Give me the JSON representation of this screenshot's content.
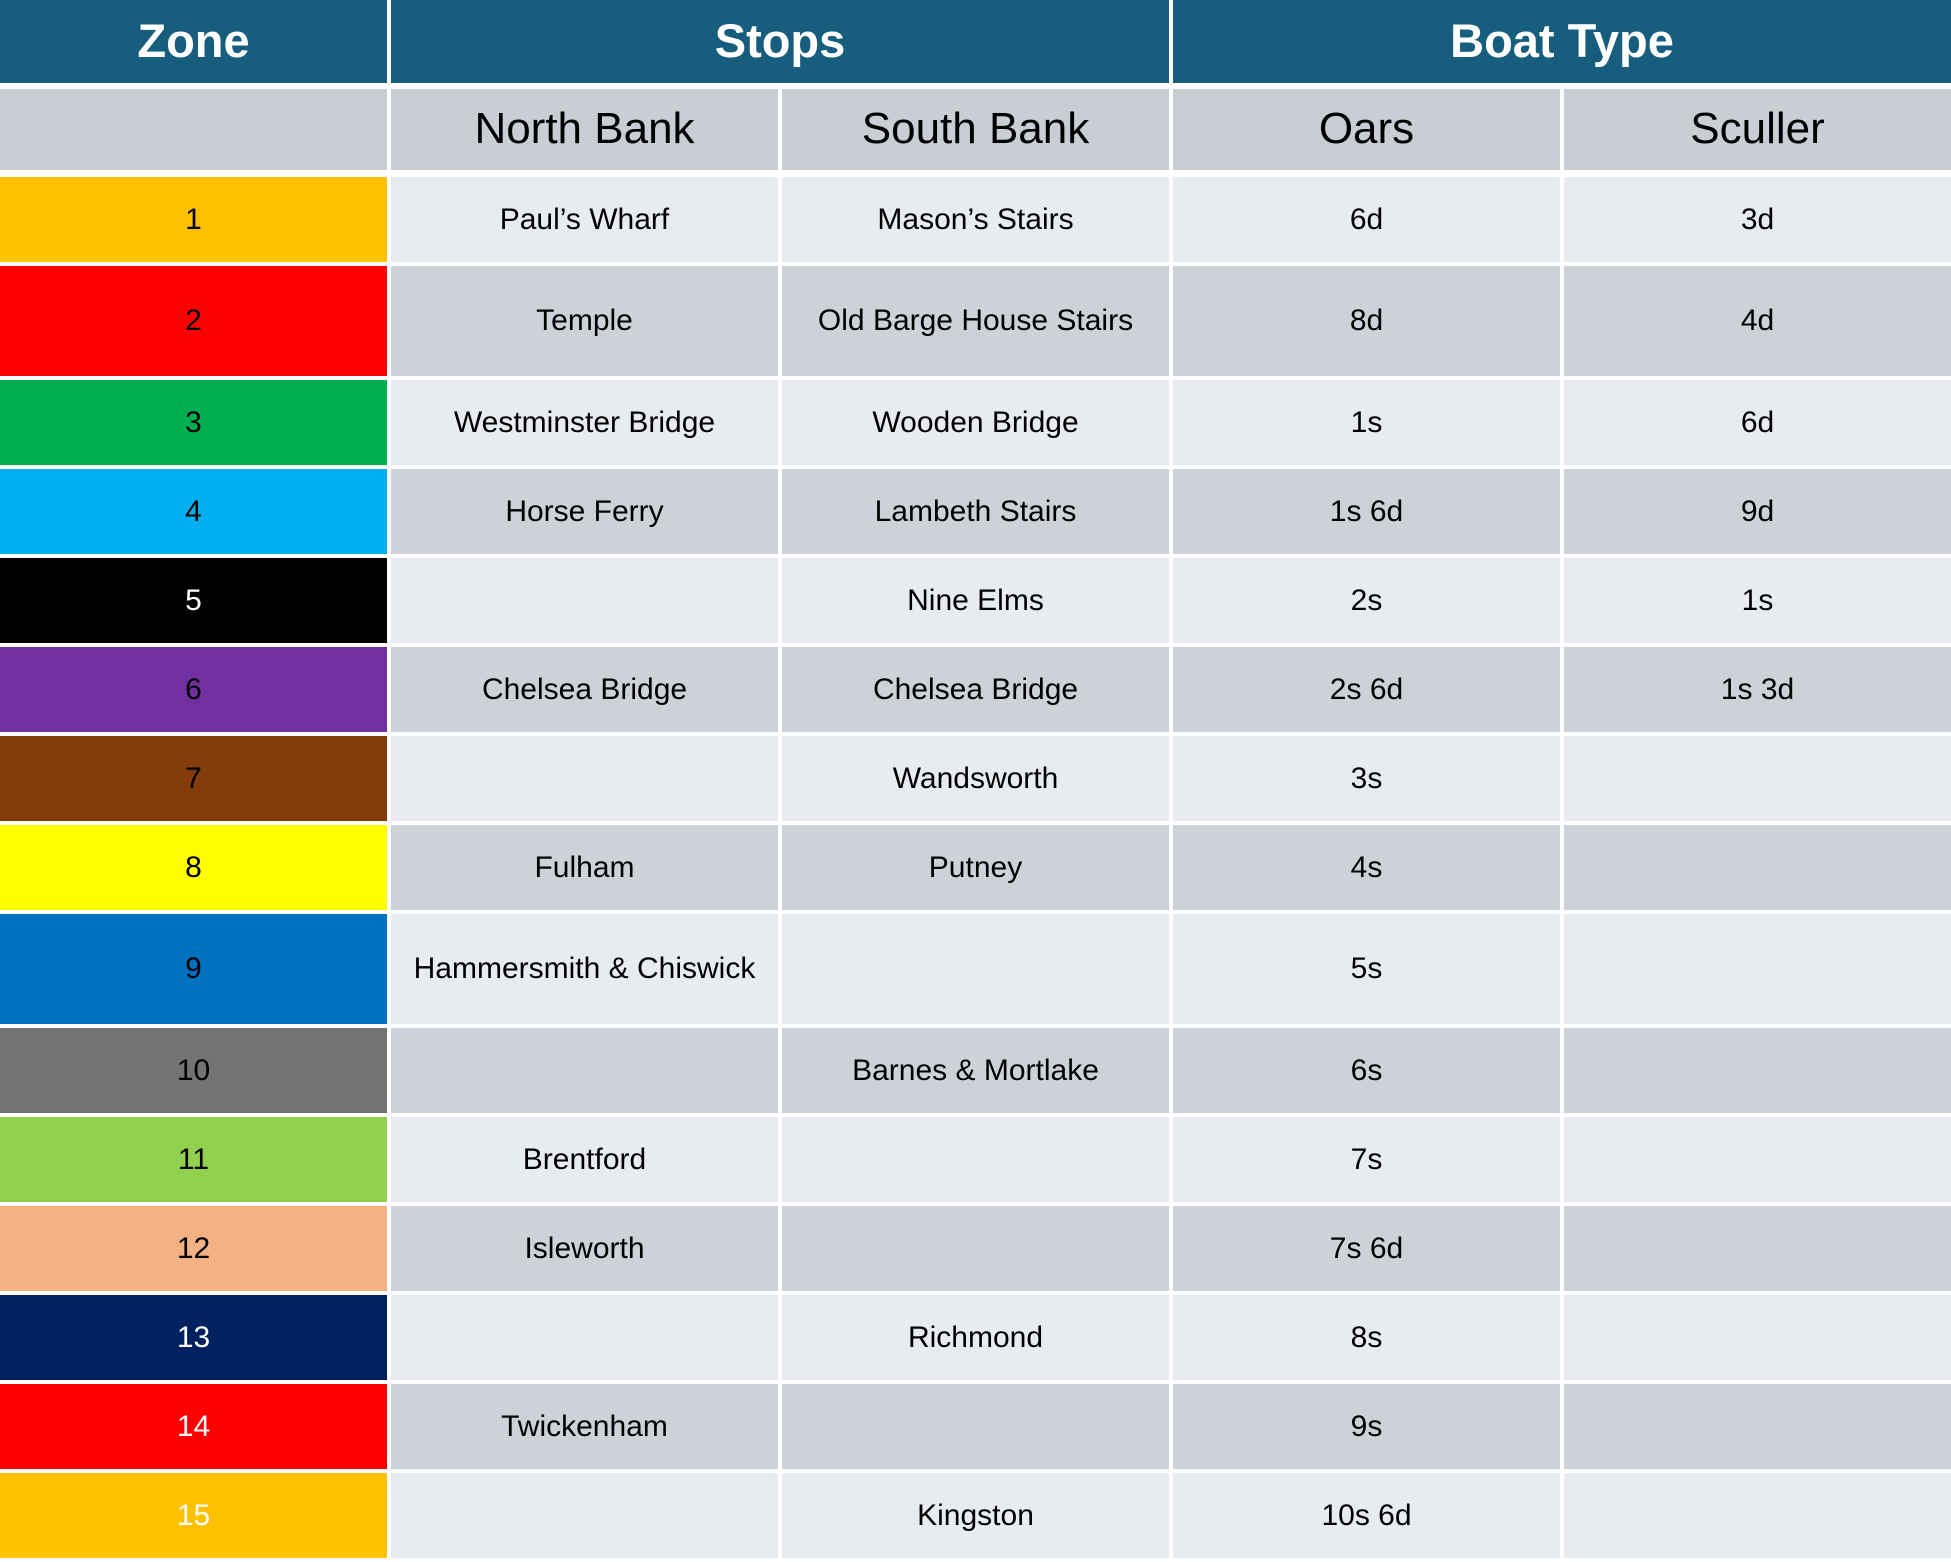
{
  "header": {
    "zone": "Zone",
    "stops": "Stops",
    "boat_type": "Boat Type"
  },
  "subheader": {
    "zone_spacer": "",
    "north_bank": "North Bank",
    "south_bank": "South Bank",
    "oars": "Oars",
    "sculler": "Sculler"
  },
  "colors": {
    "header_bg": "#175E7E",
    "header_text": "#FFFFFF",
    "subheader_bg": "#C9CDD4",
    "row_light_bg": "#E8EBEF",
    "row_dark_bg": "#CDD1D8",
    "grid_gap": "#FFFFFF"
  },
  "rows": [
    {
      "zone": "1",
      "zone_bg": "#FFC000",
      "zone_text": "#000000",
      "north_bank": "Paul’s Wharf",
      "south_bank": "Mason’s Stairs",
      "oars": "6d",
      "sculler": "3d"
    },
    {
      "zone": "2",
      "zone_bg": "#FF0000",
      "zone_text": "#000000",
      "north_bank": "Temple",
      "south_bank": "Old Barge House Stairs",
      "oars": "8d",
      "sculler": "4d"
    },
    {
      "zone": "3",
      "zone_bg": "#00B050",
      "zone_text": "#000000",
      "north_bank": "Westminster Bridge",
      "south_bank": "Wooden Bridge",
      "oars": "1s",
      "sculler": "6d"
    },
    {
      "zone": "4",
      "zone_bg": "#00B0F0",
      "zone_text": "#000000",
      "north_bank": "Horse Ferry",
      "south_bank": "Lambeth Stairs",
      "oars": "1s 6d",
      "sculler": "9d"
    },
    {
      "zone": "5",
      "zone_bg": "#000000",
      "zone_text": "#FFFFFF",
      "north_bank": "",
      "south_bank": "Nine Elms",
      "oars": "2s",
      "sculler": "1s"
    },
    {
      "zone": "6",
      "zone_bg": "#7030A0",
      "zone_text": "#000000",
      "north_bank": "Chelsea Bridge",
      "south_bank": "Chelsea Bridge",
      "oars": "2s 6d",
      "sculler": "1s 3d"
    },
    {
      "zone": "7",
      "zone_bg": "#843C0C",
      "zone_text": "#000000",
      "north_bank": "",
      "south_bank": "Wandsworth",
      "oars": "3s",
      "sculler": ""
    },
    {
      "zone": "8",
      "zone_bg": "#FFFF00",
      "zone_text": "#000000",
      "north_bank": "Fulham",
      "south_bank": "Putney",
      "oars": "4s",
      "sculler": ""
    },
    {
      "zone": "9",
      "zone_bg": "#0070C0",
      "zone_text": "#000000",
      "north_bank": "Hammersmith & Chiswick",
      "south_bank": "",
      "oars": "5s",
      "sculler": ""
    },
    {
      "zone": "10",
      "zone_bg": "#737373",
      "zone_text": "#000000",
      "north_bank": "",
      "south_bank": "Barnes & Mortlake",
      "oars": "6s",
      "sculler": ""
    },
    {
      "zone": "11",
      "zone_bg": "#92D050",
      "zone_text": "#000000",
      "north_bank": "Brentford",
      "south_bank": "",
      "oars": "7s",
      "sculler": ""
    },
    {
      "zone": "12",
      "zone_bg": "#F4B183",
      "zone_text": "#000000",
      "north_bank": "Isleworth",
      "south_bank": "",
      "oars": "7s 6d",
      "sculler": ""
    },
    {
      "zone": "13",
      "zone_bg": "#002060",
      "zone_text": "#FFFFFF",
      "north_bank": "",
      "south_bank": "Richmond",
      "oars": "8s",
      "sculler": ""
    },
    {
      "zone": "14",
      "zone_bg": "#FF0000",
      "zone_text": "#FFFFFF",
      "north_bank": "Twickenham",
      "south_bank": "",
      "oars": "9s",
      "sculler": ""
    },
    {
      "zone": "15",
      "zone_bg": "#FFC000",
      "zone_text": "#FFFFFF",
      "north_bank": "",
      "south_bank": "Kingston",
      "oars": "10s 6d",
      "sculler": ""
    }
  ]
}
